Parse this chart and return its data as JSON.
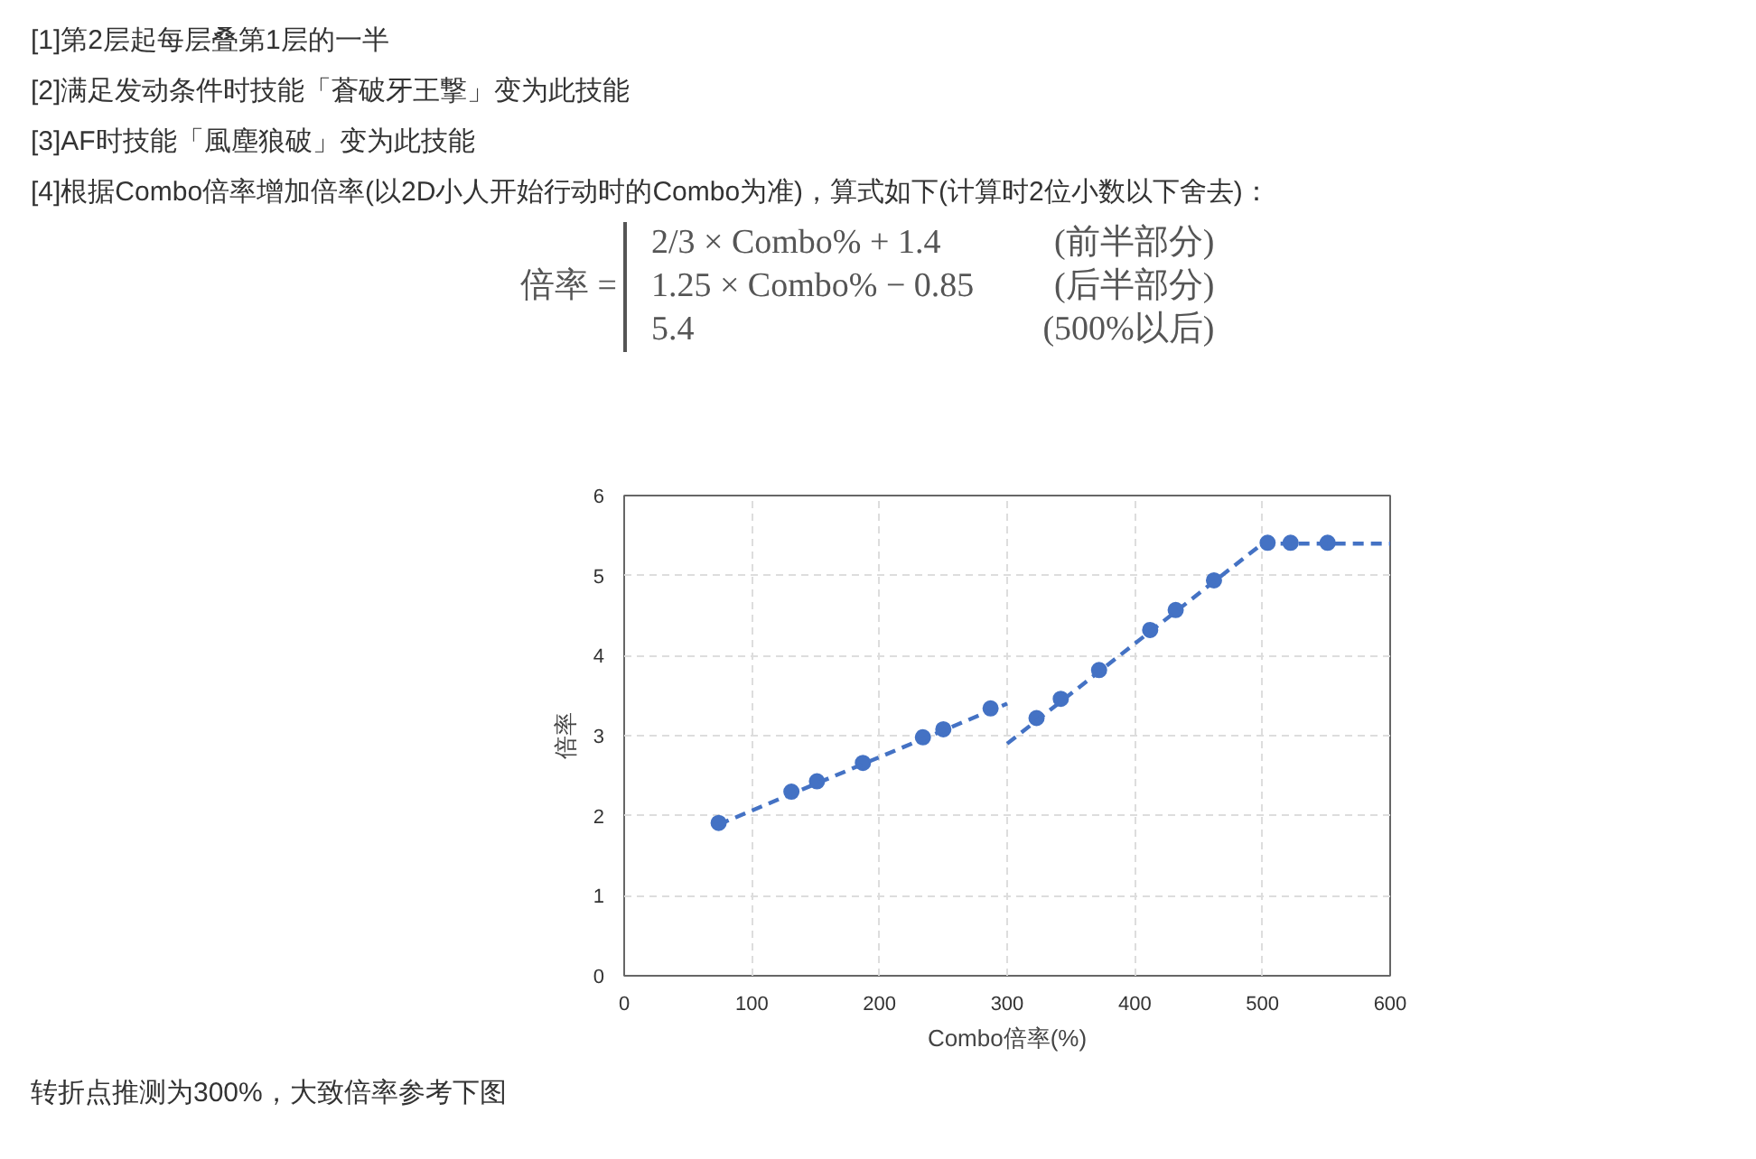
{
  "chart_data": {
    "type": "scatter",
    "xlabel": "Combo倍率(%)",
    "ylabel": "倍率",
    "annotations": [
      "[1]第2层起每层叠第1层的一半",
      "[2]满足发动条件时技能「蒼破牙王撃」变为此技能",
      "[3]AF时技能「風塵狼破」变为此技能",
      "[4]根据Combo倍率增加倍率(以2D小人开始行动时的Combo为准)，算式如下(计算时2位小数以下舍去)：",
      "倍率 =",
      "2/3 × Combo% + 1.4",
      "(前半部分)",
      "1.25 × Combo% − 0.85",
      "(后半部分)",
      "5.4",
      "(500%以后)",
      "转折点推测为300%，大致倍率参考下图"
    ],
    "series": [
      {
        "type": "scatter",
        "marker": "circle",
        "color": "#4472c4",
        "x": [
          74,
          131,
          151,
          187,
          234,
          250,
          287,
          323,
          342,
          372,
          412,
          432,
          462,
          504,
          522,
          551
        ],
        "values": [
          1.91,
          2.3,
          2.43,
          2.66,
          2.98,
          3.08,
          3.34,
          3.22,
          3.46,
          3.82,
          4.32,
          4.57,
          4.94,
          5.41,
          5.41,
          5.41
        ]
      },
      {
        "type": "line",
        "marker": "none",
        "color": "#4472c4",
        "x": [
          74,
          300
        ],
        "values": [
          1.89,
          3.4
        ]
      },
      {
        "type": "line",
        "marker": "none",
        "color": "#4472c4",
        "x": [
          300,
          500
        ],
        "values": [
          2.9,
          5.4
        ]
      },
      {
        "type": "line",
        "marker": "none",
        "color": "#4472c4",
        "x": [
          500,
          600
        ],
        "values": [
          5.4,
          5.4
        ]
      }
    ],
    "line_style": "dashed",
    "grid": true,
    "xlim": [
      0,
      600
    ],
    "xticks": [
      0,
      100,
      200,
      300,
      400,
      500,
      600
    ],
    "ylim": [
      0,
      6
    ],
    "yticks": [
      0,
      1,
      2,
      3,
      4,
      5,
      6
    ]
  }
}
